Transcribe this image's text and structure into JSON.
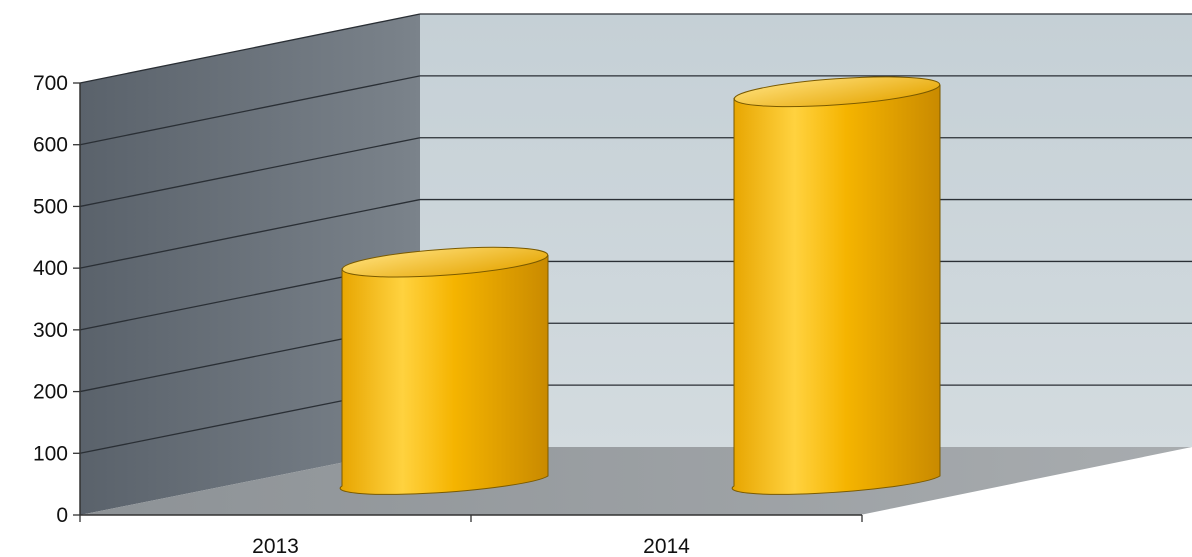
{
  "chart_data": {
    "type": "bar",
    "style": "3d-cylinder",
    "categories": [
      "2013",
      "2014"
    ],
    "series": [
      {
        "values": [
          330,
          610
        ]
      }
    ],
    "ylim": [
      0,
      700
    ],
    "yticks": [
      0,
      100,
      200,
      300,
      400,
      500,
      600,
      700
    ],
    "grid": true,
    "legend": "none",
    "colors": {
      "bar": "#f5b400",
      "bar_light": "#ffe58a",
      "bar_dark": "#c98a00",
      "back_wall": "#c9d3d8",
      "side_wall": "#5f6770",
      "floor": "#9a9fa3",
      "gridline": "#2a2f35"
    }
  }
}
